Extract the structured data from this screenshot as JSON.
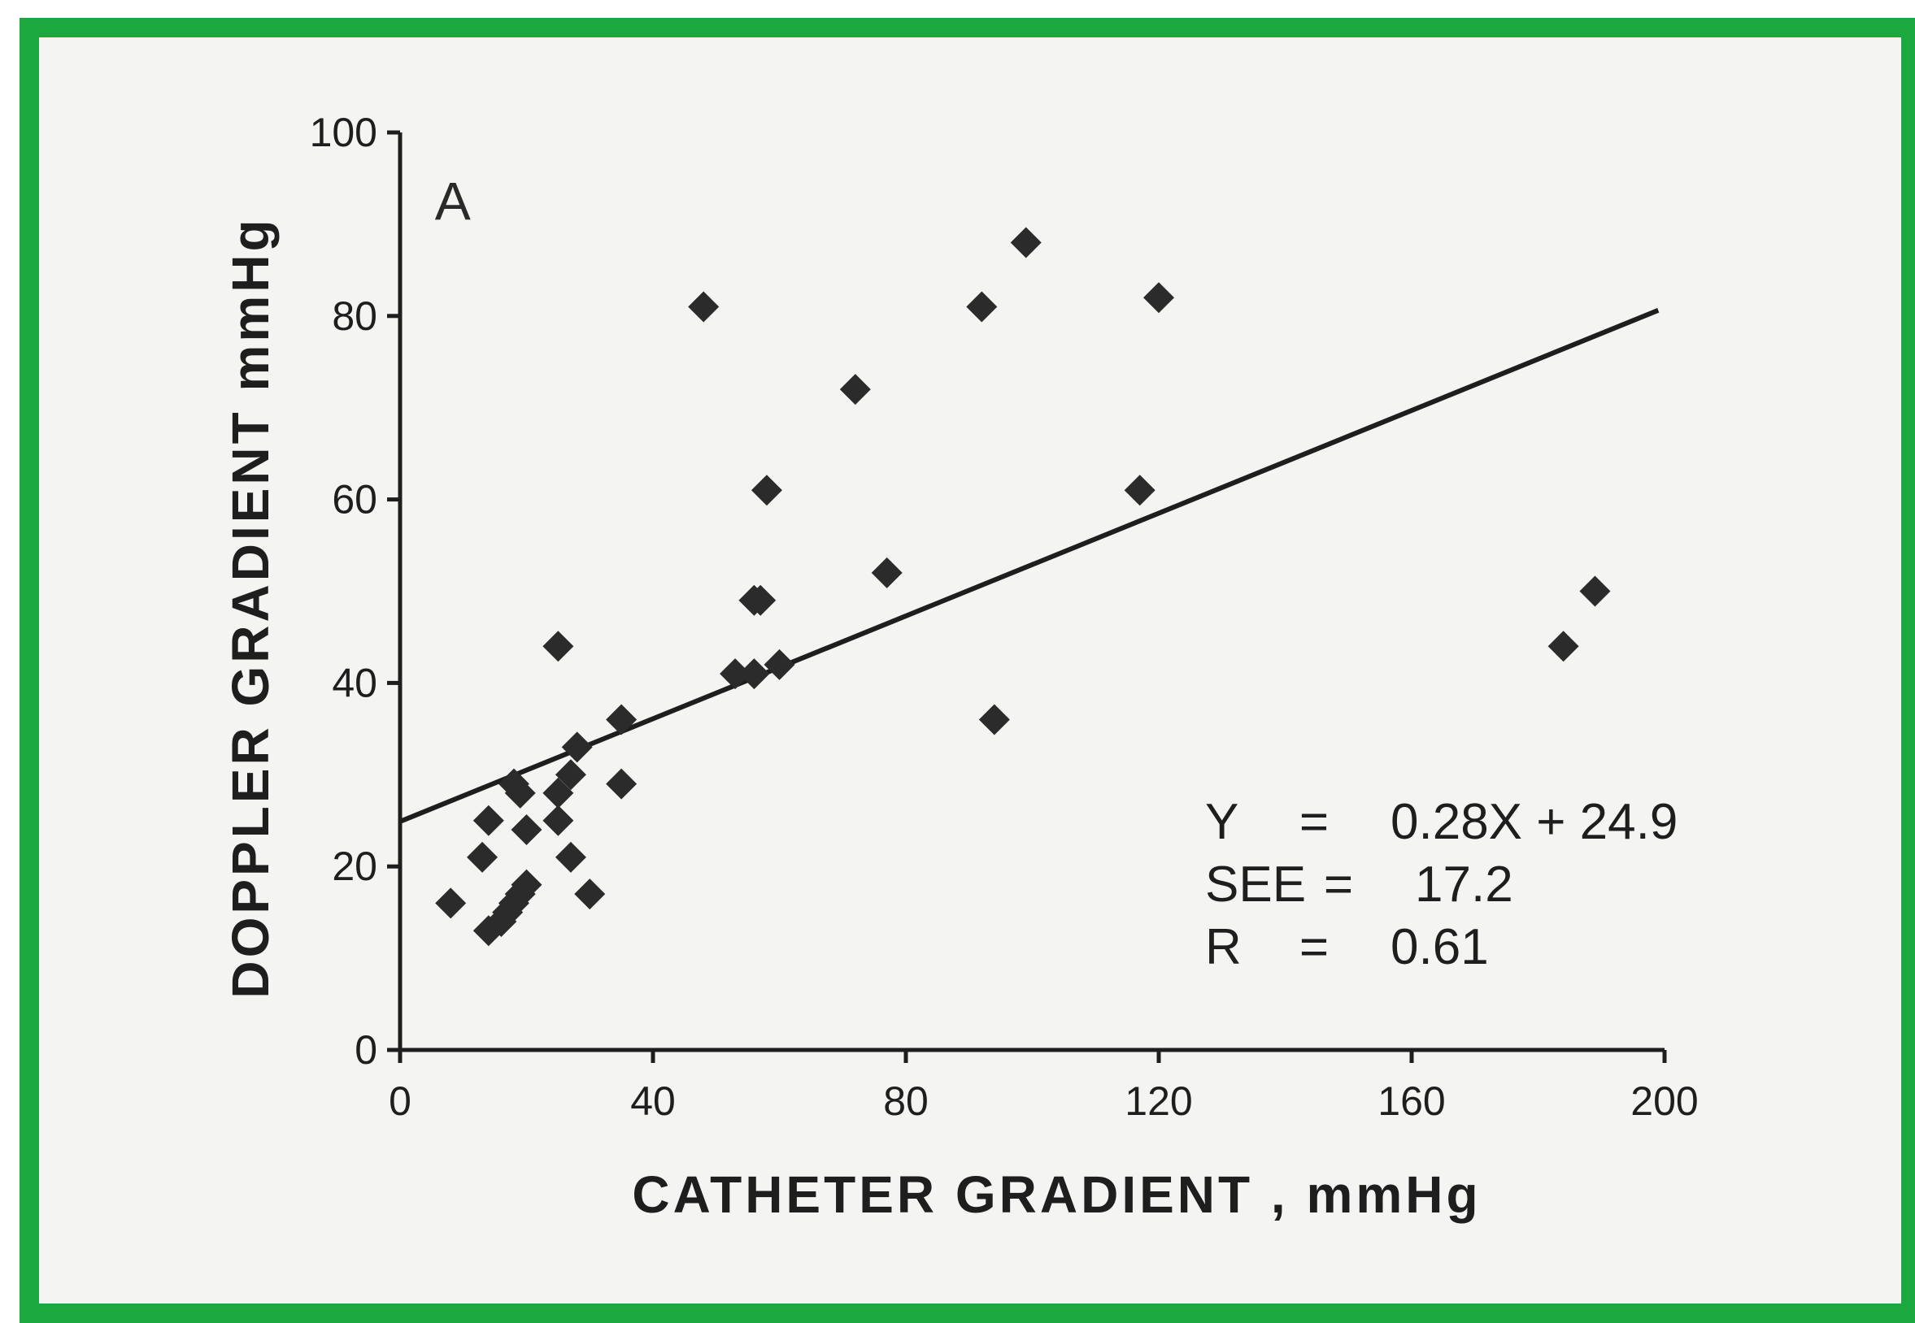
{
  "chart_data": {
    "type": "scatter",
    "title": "",
    "panel_label": "A",
    "xlabel": "CATHETER GRADIENT , mmHg",
    "ylabel": "DOPPLER GRADIENT mmHg",
    "xlim": [
      0,
      200
    ],
    "ylim": [
      0,
      100
    ],
    "xticks": [
      0,
      40,
      80,
      120,
      160,
      200
    ],
    "yticks": [
      0,
      20,
      40,
      60,
      80,
      100
    ],
    "grid": false,
    "legend": "none",
    "marker": "diamond",
    "colors": {
      "marker": "#2b2b2b",
      "line": "#1e1e1e",
      "border": "#1aa83f"
    },
    "points": [
      {
        "x": 8,
        "y": 16
      },
      {
        "x": 13,
        "y": 21
      },
      {
        "x": 14,
        "y": 13
      },
      {
        "x": 14,
        "y": 25
      },
      {
        "x": 16,
        "y": 14
      },
      {
        "x": 17,
        "y": 15
      },
      {
        "x": 18,
        "y": 16
      },
      {
        "x": 18,
        "y": 29
      },
      {
        "x": 19,
        "y": 17
      },
      {
        "x": 20,
        "y": 18
      },
      {
        "x": 19,
        "y": 28
      },
      {
        "x": 20,
        "y": 24
      },
      {
        "x": 25,
        "y": 25
      },
      {
        "x": 25,
        "y": 28
      },
      {
        "x": 25,
        "y": 44
      },
      {
        "x": 27,
        "y": 21
      },
      {
        "x": 27,
        "y": 30
      },
      {
        "x": 28,
        "y": 33
      },
      {
        "x": 30,
        "y": 17
      },
      {
        "x": 35,
        "y": 29
      },
      {
        "x": 35,
        "y": 36
      },
      {
        "x": 48,
        "y": 81
      },
      {
        "x": 53,
        "y": 41
      },
      {
        "x": 56,
        "y": 41
      },
      {
        "x": 56,
        "y": 49
      },
      {
        "x": 57,
        "y": 49
      },
      {
        "x": 58,
        "y": 61
      },
      {
        "x": 60,
        "y": 42
      },
      {
        "x": 72,
        "y": 72
      },
      {
        "x": 77,
        "y": 52
      },
      {
        "x": 92,
        "y": 81
      },
      {
        "x": 94,
        "y": 36
      },
      {
        "x": 99,
        "y": 88
      },
      {
        "x": 117,
        "y": 61
      },
      {
        "x": 120,
        "y": 82
      },
      {
        "x": 184,
        "y": 44
      },
      {
        "x": 189,
        "y": 50
      }
    ],
    "regression": {
      "slope": 0.28,
      "intercept": 24.9,
      "x_range": [
        0,
        199
      ]
    },
    "annotations": [
      {
        "label": "Y",
        "eq": "=",
        "value": "0.28X + 24.9"
      },
      {
        "label": "SEE",
        "eq": "=",
        "value": "17.2"
      },
      {
        "label": "R",
        "eq": "=",
        "value": "0.61"
      }
    ]
  }
}
